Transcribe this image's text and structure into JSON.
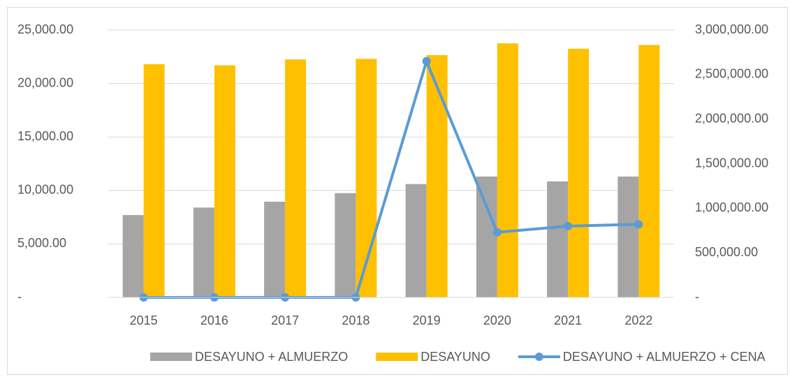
{
  "chart_data": {
    "type": "bar-line",
    "categories": [
      "2015",
      "2016",
      "2017",
      "2018",
      "2019",
      "2020",
      "2021",
      "2022"
    ],
    "series": [
      {
        "name": "DESAYUNO + ALMUERZO",
        "color": "#a5a5a5",
        "type": "bar",
        "values": [
          7700,
          8400,
          8950,
          9750,
          10600,
          11300,
          10850,
          11300
        ]
      },
      {
        "name": "DESAYUNO",
        "color": "#ffc000",
        "type": "bar",
        "values": [
          21800,
          21700,
          22250,
          22300,
          22650,
          23750,
          23250,
          23600
        ]
      },
      {
        "name": "DESAYUNO + ALMUERZO + CENA",
        "color": "#5b9bd5",
        "type": "line",
        "axis": "y2",
        "values": [
          0,
          0,
          0,
          0,
          2650000,
          730000,
          800000,
          820000
        ]
      }
    ],
    "ylim": [
      0,
      25000
    ],
    "yticks": [
      {
        "value": 0,
        "label": "-"
      },
      {
        "value": 5000,
        "label": "5,000.00"
      },
      {
        "value": 10000,
        "label": "10,000.00"
      },
      {
        "value": 15000,
        "label": "15,000.00"
      },
      {
        "value": 20000,
        "label": "20,000.00"
      },
      {
        "value": 25000,
        "label": "25,000.00"
      }
    ],
    "y2lim": [
      0,
      3000000
    ],
    "y2ticks": [
      {
        "value": 0,
        "label": "-"
      },
      {
        "value": 500000,
        "label": "500,000.00"
      },
      {
        "value": 1000000,
        "label": "1,000,000.00"
      },
      {
        "value": 1500000,
        "label": "1,500,000.00"
      },
      {
        "value": 2000000,
        "label": "2,000,000.00"
      },
      {
        "value": 2500000,
        "label": "2,500,000.00"
      },
      {
        "value": 3000000,
        "label": "3,000,000.00"
      }
    ],
    "grid": true,
    "legend": "bottom"
  }
}
